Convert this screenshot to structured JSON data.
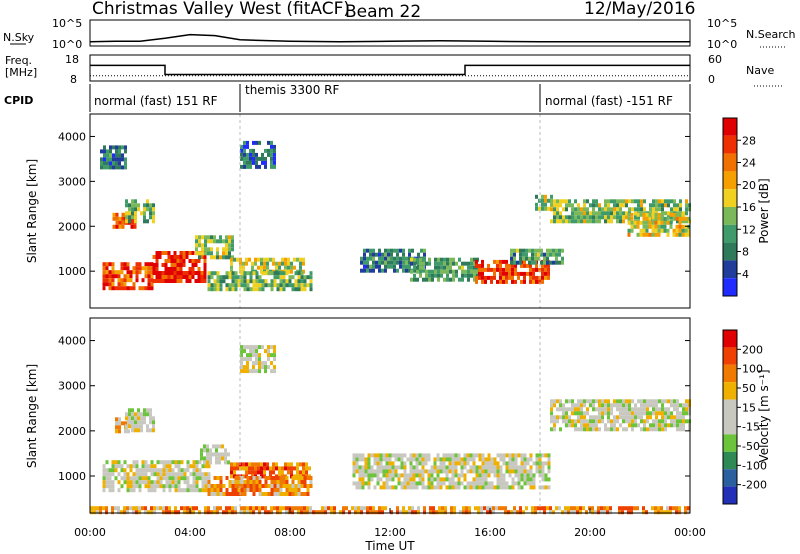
{
  "header": {
    "title": "Christmas Valley West (fitACF)",
    "beam": "Beam 22",
    "date": "12/May/2016"
  },
  "colors": {
    "power_scale": [
      "#1f2bff",
      "#213d9c",
      "#2e7a5a",
      "#3f9c6a",
      "#7ab85a",
      "#f0d020",
      "#f5a000",
      "#f07000",
      "#ee3000",
      "#e00000"
    ],
    "velocity_scale": [
      "#2230b8",
      "#2a5fa0",
      "#2e8a55",
      "#6cc43a",
      "#c8c8c0",
      "#c8c8c0",
      "#f0b000",
      "#f07a00",
      "#f04000",
      "#e00000"
    ],
    "ground_scatter": "#c8c8c0"
  },
  "chart_data": [
    {
      "type": "line",
      "panel": "sky-noise",
      "ylabel": "N.Sky",
      "right_label": "N.Search",
      "y_ticks": [
        "10^5",
        "10^0"
      ],
      "right_ticks": [
        "10^5",
        "10^0"
      ],
      "x_range_hours": [
        0,
        24
      ],
      "series": [
        {
          "x": [
            0,
            1,
            2,
            3,
            4,
            5,
            6,
            8,
            10,
            12,
            14,
            16,
            18,
            20,
            22,
            24
          ],
          "y": [
            0.8,
            0.9,
            0.9,
            1.5,
            2.2,
            2.0,
            1.2,
            0.9,
            0.8,
            0.9,
            1.0,
            0.9,
            0.8,
            0.8,
            0.8,
            0.8
          ]
        }
      ]
    },
    {
      "type": "line",
      "panel": "frequency",
      "ylabel_lines": [
        "Freq.",
        "[MHz]"
      ],
      "right_label": "Nave",
      "y_ticks": [
        "18",
        "8"
      ],
      "right_ticks": [
        "60",
        "0"
      ],
      "x_range_hours": [
        0,
        24
      ],
      "series": [
        {
          "x": [
            0,
            3,
            3,
            15,
            15,
            24
          ],
          "y": [
            14,
            14,
            10.5,
            10.5,
            14,
            14
          ]
        }
      ],
      "nave_level": 12
    },
    {
      "type": "table",
      "panel": "cpid",
      "label": "CPID",
      "segments": [
        {
          "start": 0,
          "end": 6,
          "label": "normal (fast) 151 RF"
        },
        {
          "start": 6,
          "end": 18,
          "label": "themis 3300 RF"
        },
        {
          "start": 18,
          "end": 24,
          "label": "normal (fast) -151 RF"
        }
      ]
    },
    {
      "type": "heatmap",
      "panel": "power",
      "ylabel": "Slant Range [km]",
      "colorbar_label": "Power [dB]",
      "colorbar_ticks": [
        "28",
        "24",
        "20",
        "16",
        "12",
        "8",
        "4"
      ],
      "ylim": [
        180,
        4500
      ],
      "y_ticks": [
        1000,
        2000,
        3000,
        4000
      ],
      "x_range_hours": [
        0,
        24
      ],
      "patches": [
        {
          "t0": 0.4,
          "t1": 1.4,
          "r0": 3300,
          "r1": 3800,
          "level": 0.25
        },
        {
          "t0": 0.9,
          "t1": 1.8,
          "r0": 1950,
          "r1": 2300,
          "level": 0.85
        },
        {
          "t0": 1.4,
          "t1": 2.6,
          "r0": 2100,
          "r1": 2600,
          "level": 0.4
        },
        {
          "t0": 0.5,
          "t1": 2.5,
          "r0": 650,
          "r1": 1200,
          "level": 0.8
        },
        {
          "t0": 2.5,
          "t1": 4.6,
          "r0": 800,
          "r1": 1450,
          "level": 0.9
        },
        {
          "t0": 4.2,
          "t1": 5.7,
          "r0": 1350,
          "r1": 1800,
          "level": 0.45
        },
        {
          "t0": 5.6,
          "t1": 8.6,
          "r0": 1000,
          "r1": 1300,
          "level": 0.5
        },
        {
          "t0": 4.7,
          "t1": 8.8,
          "r0": 600,
          "r1": 1000,
          "level": 0.4
        },
        {
          "t0": 6.0,
          "t1": 7.4,
          "r0": 3300,
          "r1": 3900,
          "level": 0.2
        },
        {
          "t0": 10.8,
          "t1": 13.4,
          "r0": 1000,
          "r1": 1500,
          "level": 0.25
        },
        {
          "t0": 12.8,
          "t1": 15.6,
          "r0": 800,
          "r1": 1300,
          "level": 0.35
        },
        {
          "t0": 15.4,
          "t1": 18.3,
          "r0": 750,
          "r1": 1250,
          "level": 0.85
        },
        {
          "t0": 16.8,
          "t1": 18.9,
          "r0": 1200,
          "r1": 1500,
          "level": 0.35
        },
        {
          "t0": 18.4,
          "t1": 24.0,
          "r0": 2100,
          "r1": 2600,
          "level": 0.45
        },
        {
          "t0": 17.8,
          "t1": 18.5,
          "r0": 2400,
          "r1": 2700,
          "level": 0.45
        },
        {
          "t0": 21.5,
          "t1": 24.0,
          "r0": 1800,
          "r1": 2300,
          "level": 0.55
        }
      ]
    },
    {
      "type": "heatmap",
      "panel": "velocity",
      "ylabel": "Slant Range [km]",
      "colorbar_label": "Velocity [m s⁻¹]",
      "colorbar_ticks": [
        "200",
        "100",
        "50",
        "15",
        "-15",
        "-50",
        "-100",
        "-200"
      ],
      "ylim": [
        180,
        4500
      ],
      "y_ticks": [
        1000,
        2000,
        3000,
        4000
      ],
      "x_range_hours": [
        0,
        24
      ],
      "xlabel": "Time UT",
      "x_tick_labels": [
        "00:00",
        "04:00",
        "08:00",
        "12:00",
        "16:00",
        "20:00",
        "00:00"
      ],
      "patches": [
        {
          "t0": 0.5,
          "t1": 4.8,
          "r0": 650,
          "r1": 1350,
          "level": 0.5
        },
        {
          "t0": 4.4,
          "t1": 5.6,
          "r0": 1300,
          "r1": 1700,
          "level": 0.5
        },
        {
          "t0": 1.0,
          "t1": 1.6,
          "r0": 1950,
          "r1": 2300,
          "level": 0.62
        },
        {
          "t0": 1.4,
          "t1": 2.6,
          "r0": 2050,
          "r1": 2500,
          "level": 0.5
        },
        {
          "t0": 5.6,
          "t1": 8.8,
          "r0": 1000,
          "r1": 1300,
          "level": 0.78
        },
        {
          "t0": 4.7,
          "t1": 8.8,
          "r0": 600,
          "r1": 1000,
          "level": 0.72
        },
        {
          "t0": 6.0,
          "t1": 7.4,
          "r0": 3300,
          "r1": 3900,
          "level": 0.5
        },
        {
          "t0": 10.5,
          "t1": 18.4,
          "r0": 750,
          "r1": 1500,
          "level": 0.5
        },
        {
          "t0": 18.4,
          "t1": 24.0,
          "r0": 2000,
          "r1": 2700,
          "level": 0.5
        },
        {
          "t0": 0.0,
          "t1": 24.0,
          "r0": 180,
          "r1": 330,
          "level": 0.72
        }
      ]
    }
  ]
}
